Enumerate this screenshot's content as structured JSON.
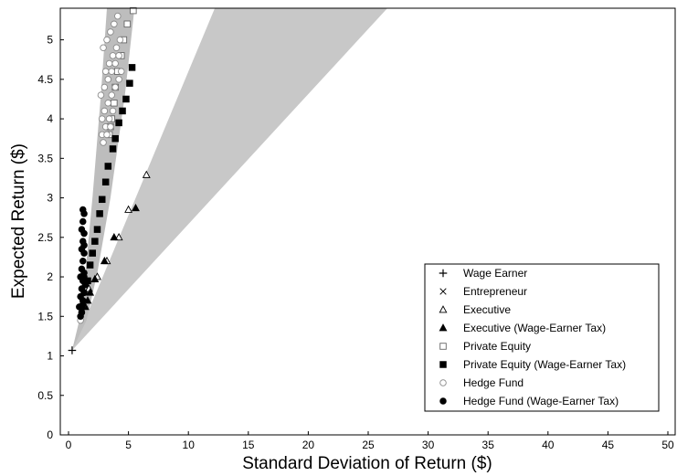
{
  "chart_data": {
    "type": "scatter",
    "title": "",
    "xlabel": "Standard Deviation of Return ($)",
    "ylabel": "Expected Return ($)",
    "xlim": [
      0,
      50
    ],
    "ylim": [
      0,
      5.4
    ],
    "xticks": [
      0,
      5,
      10,
      15,
      20,
      25,
      30,
      35,
      40,
      45,
      50
    ],
    "yticks": [
      0,
      0.5,
      1,
      1.5,
      2,
      2.5,
      3,
      3.5,
      4,
      4.5,
      5
    ],
    "grid": false,
    "legend_placement": "bottom-right",
    "shaded_cone": {
      "origin": [
        0.3,
        1.07
      ],
      "upper_edge_top": [
        12.2,
        5.4
      ],
      "lower_edge_top": [
        26.6,
        5.4
      ],
      "color": "#c8c8c8"
    },
    "band": {
      "upper_edge": [
        [
          0.3,
          1.07
        ],
        [
          0.9,
          1.45
        ],
        [
          1.4,
          2.05
        ],
        [
          2.0,
          3.0
        ],
        [
          2.7,
          4.3
        ],
        [
          3.2,
          5.4
        ]
      ],
      "lower_edge": [
        [
          0.3,
          1.07
        ],
        [
          1.5,
          1.45
        ],
        [
          2.4,
          2.05
        ],
        [
          3.5,
          3.0
        ],
        [
          4.7,
          4.3
        ],
        [
          5.5,
          5.4
        ]
      ],
      "color": "#bdbdbd"
    },
    "series": [
      {
        "name": "Wage Earner",
        "marker": "plus",
        "x": [
          0.3
        ],
        "y": [
          1.07
        ]
      },
      {
        "name": "Entrepreneur",
        "marker": "x",
        "x": [],
        "y": []
      },
      {
        "name": "Executive",
        "marker": "triangle-open",
        "x": [
          6.5,
          5.0,
          4.2,
          3.2,
          2.4,
          1.7,
          1.3
        ],
        "y": [
          3.29,
          2.85,
          2.5,
          2.2,
          2.0,
          1.85,
          1.65
        ]
      },
      {
        "name": "Executive (Wage-Earner Tax)",
        "marker": "triangle-filled",
        "x": [
          5.6,
          3.8,
          3.0,
          2.2,
          1.8,
          1.6,
          1.4
        ],
        "y": [
          2.87,
          2.5,
          2.2,
          1.97,
          1.8,
          1.7,
          1.62
        ]
      },
      {
        "name": "Private Equity",
        "marker": "square-open",
        "x": [
          5.4,
          4.9,
          4.6,
          4.4,
          4.1,
          3.9,
          3.8,
          3.6,
          3.5,
          3.4
        ],
        "y": [
          5.37,
          5.2,
          5.0,
          4.8,
          4.6,
          4.4,
          4.2,
          4.0,
          3.9,
          3.8
        ]
      },
      {
        "name": "Private Equity (Wage-Earner Tax)",
        "marker": "square-filled",
        "x": [
          5.3,
          5.1,
          4.8,
          4.5,
          4.2,
          3.9,
          3.7,
          3.3,
          3.1,
          2.8,
          2.6,
          2.4,
          2.2,
          2.0,
          1.8,
          1.6
        ],
        "y": [
          4.65,
          4.45,
          4.25,
          4.1,
          3.95,
          3.75,
          3.62,
          3.4,
          3.2,
          2.98,
          2.8,
          2.6,
          2.45,
          2.3,
          2.15,
          1.95
        ]
      },
      {
        "name": "Hedge Fund",
        "marker": "circle-open",
        "x": [
          2.8,
          3.0,
          3.3,
          3.6,
          3.9,
          4.2,
          4.4,
          3.1,
          3.4,
          3.7,
          4.0,
          4.3,
          2.9,
          3.2,
          3.5,
          3.8,
          4.1,
          2.7,
          3.0,
          3.3,
          3.6,
          3.9,
          4.2,
          2.8,
          3.1,
          3.4,
          3.7,
          2.9,
          3.2,
          3.5,
          1.0,
          1.1,
          1.2
        ],
        "y": [
          4.0,
          4.1,
          4.2,
          4.3,
          4.4,
          4.5,
          4.6,
          4.6,
          4.7,
          4.8,
          4.9,
          5.0,
          4.9,
          5.0,
          5.1,
          5.2,
          5.3,
          4.3,
          4.4,
          4.5,
          4.6,
          4.7,
          4.8,
          3.8,
          3.9,
          4.0,
          4.1,
          3.7,
          3.8,
          3.9,
          1.45,
          1.55,
          1.65
        ]
      },
      {
        "name": "Hedge Fund (Wage-Earner Tax)",
        "marker": "circle-filled",
        "x": [
          1.0,
          1.1,
          1.2,
          1.3,
          1.4,
          1.0,
          1.1,
          1.2,
          1.3,
          1.0,
          1.1,
          1.2,
          1.3,
          1.1,
          1.2,
          1.3,
          1.1,
          1.2,
          1.3,
          1.2,
          1.3,
          1.3,
          1.2,
          1.1,
          0.9
        ],
        "y": [
          1.5,
          1.6,
          1.7,
          1.8,
          1.9,
          1.75,
          1.85,
          1.95,
          2.05,
          2.0,
          2.1,
          2.2,
          2.3,
          2.35,
          2.45,
          2.55,
          2.6,
          2.7,
          2.8,
          2.85,
          2.4,
          2.0,
          1.65,
          1.55,
          1.62
        ]
      }
    ]
  }
}
